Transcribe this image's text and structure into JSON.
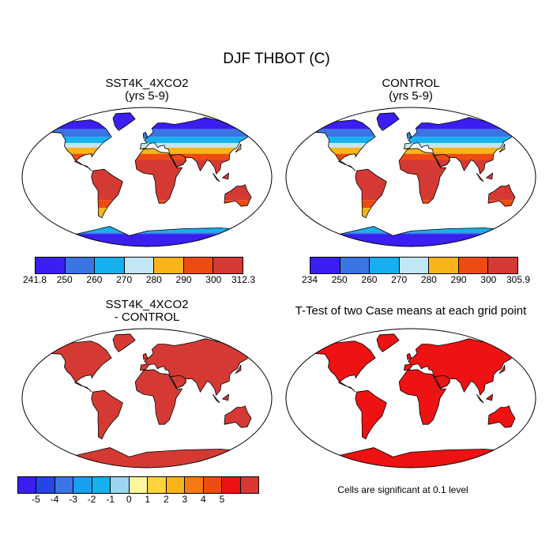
{
  "title": "DJF THBOT (C)",
  "panels": [
    {
      "line1": "SST4K_4XCO2",
      "line2": "(yrs 5-9)"
    },
    {
      "line1": "CONTROL",
      "line2": "(yrs 5-9)"
    },
    {
      "line1": "SST4K_4XCO2",
      "line2": "- CONTROL"
    },
    {
      "line1": "T-Test of two Case means at each grid point",
      "line2": ""
    }
  ],
  "colorbars": [
    {
      "labels": [
        "241.8",
        "250",
        "260",
        "270",
        "280",
        "290",
        "300",
        "312.3"
      ],
      "colors": [
        "#3a1ef2",
        "#3b74e4",
        "#16b0f0",
        "#c2e6f4",
        "#fbb41a",
        "#ee4b12",
        "#d43a33"
      ]
    },
    {
      "labels": [
        "234",
        "250",
        "260",
        "270",
        "280",
        "290",
        "300",
        "305.9"
      ],
      "colors": [
        "#3a1ef2",
        "#3b74e4",
        "#16b0f0",
        "#c2e6f4",
        "#fbb41a",
        "#ee4b12",
        "#d43a33"
      ]
    },
    {
      "labels": [
        "-5",
        "-4",
        "-3",
        "-2",
        "-1",
        "0",
        "1",
        "2",
        "3",
        "4",
        "5"
      ],
      "colors": [
        "#3a1ef2",
        "#2545e6",
        "#3b74e4",
        "#1a9ef0",
        "#16b0f0",
        "#9ad6f0",
        "#fff89a",
        "#fdd340",
        "#fbb41a",
        "#f47a14",
        "#ee4b12",
        "#ee1212",
        "#d43a33"
      ]
    }
  ],
  "significance_note": "Cells are significant at 0.1 level"
}
